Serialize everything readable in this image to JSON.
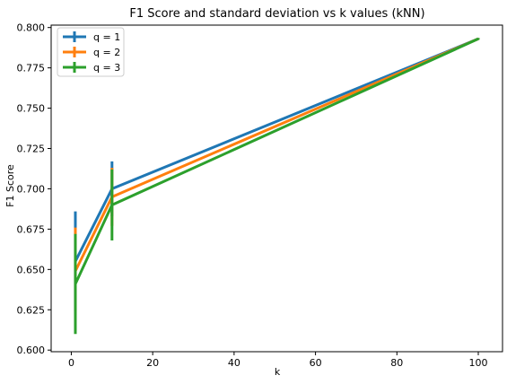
{
  "chart_data": {
    "type": "line",
    "title": "F1 Score and standard deviation vs k values (kNN)",
    "xlabel": "k",
    "ylabel": "F1 Score",
    "xlim": [
      -4.95,
      105.95
    ],
    "ylim": [
      0.599,
      0.8015
    ],
    "xticks": [
      0,
      20,
      40,
      60,
      80,
      100
    ],
    "yticks": [
      0.6,
      0.625,
      0.65,
      0.675,
      0.7,
      0.725,
      0.75,
      0.775,
      0.8
    ],
    "ytick_labels": [
      "0.600",
      "0.625",
      "0.650",
      "0.675",
      "0.700",
      "0.725",
      "0.750",
      "0.775",
      "0.800"
    ],
    "grid": false,
    "legend_position": "top-left",
    "x": [
      1,
      10,
      100
    ],
    "series": [
      {
        "name": "q = 1",
        "color": "#1f77b4",
        "values": [
          0.655,
          0.7,
          0.793
        ],
        "errors": [
          0.031,
          0.017,
          0.0005
        ]
      },
      {
        "name": "q = 2",
        "color": "#ff7f0e",
        "values": [
          0.649,
          0.695,
          0.793
        ],
        "errors": [
          0.027,
          0.018,
          0.0005
        ]
      },
      {
        "name": "q = 3",
        "color": "#2ca02c",
        "values": [
          0.641,
          0.69,
          0.793
        ],
        "errors": [
          0.031,
          0.022,
          0.0005
        ]
      }
    ]
  }
}
